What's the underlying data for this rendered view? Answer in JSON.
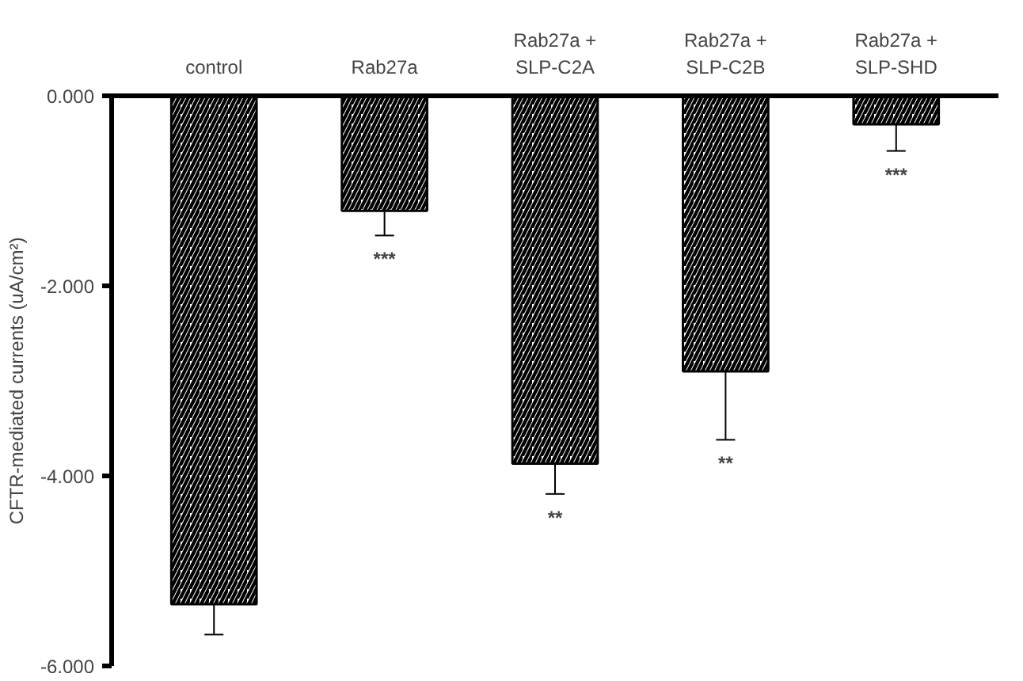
{
  "chart_data": {
    "type": "bar",
    "ylabel": "CFTR-mediated currents (uA/cm²)",
    "categories": [
      "control",
      "Rab27a",
      "Rab27a +\nSLP-C2A",
      "Rab27a +\nSLP-C2B",
      "Rab27a +\nSLP-SHD"
    ],
    "values": [
      -5.35,
      -1.21,
      -3.87,
      -2.9,
      -0.3
    ],
    "errors": [
      0.32,
      0.26,
      0.32,
      0.72,
      0.28
    ],
    "color": "#000000",
    "ylim": [
      -6,
      0
    ],
    "yticks": [
      {
        "value": 0,
        "label": "0.000"
      },
      {
        "value": -2,
        "label": "-2.000"
      },
      {
        "value": -4,
        "label": "-4.000"
      },
      {
        "value": -6,
        "label": "-6.000"
      }
    ],
    "annotations": [
      "***",
      "**",
      "**",
      "***"
    ],
    "grid": false
  }
}
